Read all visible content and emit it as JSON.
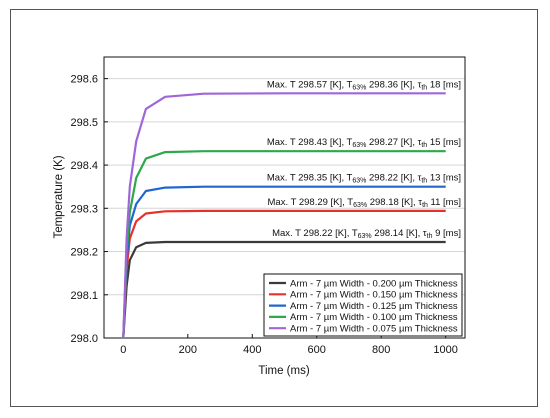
{
  "chart_data": {
    "type": "line",
    "xlabel": "Time (ms)",
    "ylabel": "Temperature (K)",
    "xlim": [
      -60,
      1060
    ],
    "ylim": [
      298.0,
      298.65
    ],
    "xticks": [
      0,
      200,
      400,
      600,
      800,
      1000
    ],
    "yticks": [
      298.0,
      298.1,
      298.2,
      298.3,
      298.4,
      298.5,
      298.6
    ],
    "ytick_labels": [
      "298.0",
      "298.1",
      "298.2",
      "298.3",
      "298.4",
      "298.5",
      "298.6"
    ],
    "grid": "horizontal",
    "legend_position": "bottom-right",
    "series": [
      {
        "name": "Arm - 7 µm Width - 0.200 µm Thickness",
        "color": "#3a3a3a",
        "x": [
          0,
          10,
          20,
          40,
          70,
          130,
          250,
          500,
          1000
        ],
        "y": [
          298.0,
          298.12,
          298.18,
          298.21,
          298.22,
          298.222,
          298.222,
          298.222,
          298.222
        ],
        "annotation": {
          "prefix": "Max. T 298.22 [K], T",
          "sub1": "63%",
          "mid": " 298.14 [K], τ",
          "sub2": "th",
          "suffix": " 9 [ms]"
        }
      },
      {
        "name": "Arm - 7 µm Width - 0.150 µm Thickness",
        "color": "#e8302a",
        "x": [
          0,
          10,
          20,
          40,
          70,
          130,
          250,
          500,
          1000
        ],
        "y": [
          298.0,
          298.16,
          298.23,
          298.27,
          298.288,
          298.293,
          298.294,
          298.294,
          298.294
        ],
        "annotation": {
          "prefix": "Max. T 298.29 [K], T",
          "sub1": "63%",
          "mid": " 298.18 [K], τ",
          "sub2": "th",
          "suffix": " 11 [ms]"
        }
      },
      {
        "name": "Arm - 7 µm Width - 0.125 µm Thickness",
        "color": "#1f66d1",
        "x": [
          0,
          10,
          20,
          40,
          70,
          130,
          250,
          500,
          1000
        ],
        "y": [
          298.0,
          298.18,
          298.26,
          298.31,
          298.34,
          298.348,
          298.35,
          298.35,
          298.35
        ],
        "annotation": {
          "prefix": "Max. T 298.35 [K], T",
          "sub1": "63%",
          "mid": " 298.22 [K], τ",
          "sub2": "th",
          "suffix": " 13 [ms]"
        }
      },
      {
        "name": "Arm - 7 µm Width - 0.100 µm Thickness",
        "color": "#2da84a",
        "x": [
          0,
          10,
          20,
          40,
          70,
          130,
          250,
          500,
          1000
        ],
        "y": [
          298.0,
          298.2,
          298.29,
          298.37,
          298.415,
          298.43,
          298.432,
          298.432,
          298.432
        ],
        "annotation": {
          "prefix": "Max. T 298.43 [K], T",
          "sub1": "63%",
          "mid": " 298.27 [K], τ",
          "sub2": "th",
          "suffix": " 15 [ms]"
        }
      },
      {
        "name": "Arm - 7 µm Width - 0.075 µm Thickness",
        "color": "#a066d8",
        "x": [
          0,
          10,
          20,
          40,
          70,
          130,
          250,
          500,
          1000
        ],
        "y": [
          298.0,
          298.23,
          298.35,
          298.455,
          298.53,
          298.558,
          298.565,
          298.566,
          298.566
        ],
        "annotation": {
          "prefix": "Max. T 298.57 [K], T",
          "sub1": "63%",
          "mid": " 298.36 [K], τ",
          "sub2": "th",
          "suffix": " 18 [ms]"
        }
      }
    ]
  }
}
